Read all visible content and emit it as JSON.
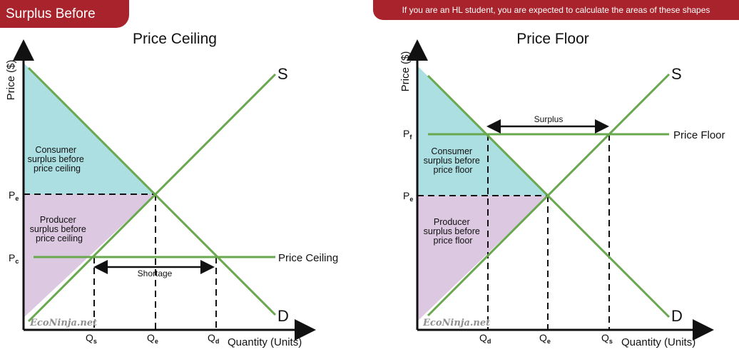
{
  "banner_left": "Surplus Before",
  "banner_right": "If you are an HL student, you are expected to calculate the areas of these shapes",
  "colors": {
    "banner": "#a8232b",
    "curve": "#6aa84f",
    "consumer_surplus": "#abdfe2",
    "producer_surplus": "#dcc8e1",
    "axis": "#111111"
  },
  "ceiling": {
    "title": "Price Ceiling",
    "y_axis_label": "Price ($)",
    "x_axis_label": "Quantity (Units)",
    "supply_label": "S",
    "demand_label": "D",
    "control_line_label": "Price Ceiling",
    "consumer_text": [
      "Consumer",
      "surplus before",
      "price ceiling"
    ],
    "producer_text": [
      "Producer",
      "surplus before",
      "price ceiling"
    ],
    "gap_label": "Shortage",
    "watermark": "EcoNinja.net",
    "price_ticks": [
      {
        "base": "P",
        "sub": "e"
      },
      {
        "base": "P",
        "sub": "c"
      }
    ],
    "qty_ticks": [
      {
        "base": "Q",
        "sub": "s"
      },
      {
        "base": "Q",
        "sub": "e"
      },
      {
        "base": "Q",
        "sub": "d"
      }
    ]
  },
  "floor": {
    "title": "Price Floor",
    "y_axis_label": "Price ($)",
    "x_axis_label": "Quantity (Units)",
    "supply_label": "S",
    "demand_label": "D",
    "control_line_label": "Price Floor",
    "consumer_text": [
      "Consumer",
      "surplus before",
      "price floor"
    ],
    "producer_text": [
      "Producer",
      "surplus before",
      "price floor"
    ],
    "gap_label": "Surplus",
    "watermark": "EcoNinja.net",
    "price_ticks": [
      {
        "base": "P",
        "sub": "f"
      },
      {
        "base": "P",
        "sub": "e"
      }
    ],
    "qty_ticks": [
      {
        "base": "Q",
        "sub": "d"
      },
      {
        "base": "Q",
        "sub": "e"
      },
      {
        "base": "Q",
        "sub": "s"
      }
    ]
  }
}
